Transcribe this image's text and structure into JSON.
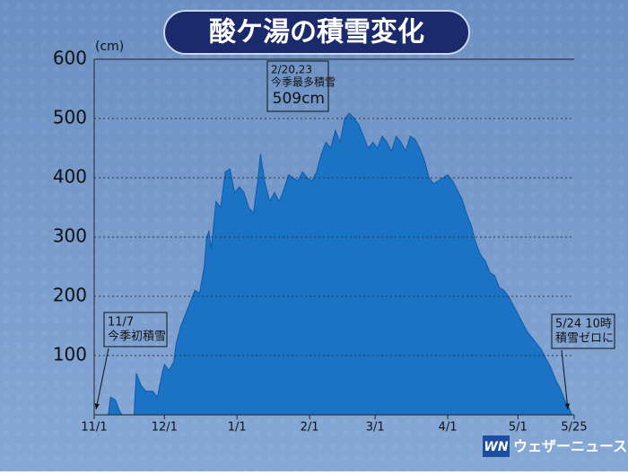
{
  "chart_data": {
    "type": "area",
    "title": "酸ケ湯の積雪変化",
    "y_unit": "(cm)",
    "x": [
      0,
      6,
      7,
      9,
      11,
      12,
      17,
      18,
      20,
      22,
      25,
      27,
      29,
      30,
      32,
      34,
      35,
      37,
      39,
      41,
      43,
      45,
      47,
      48,
      49,
      50,
      52,
      54,
      56,
      58,
      60,
      62,
      64,
      66,
      68,
      70,
      71,
      73,
      75,
      77,
      79,
      81,
      83,
      85,
      87,
      89,
      91,
      93,
      95,
      97,
      99,
      101,
      103,
      105,
      107,
      109,
      111,
      113,
      115,
      117,
      119,
      121,
      123,
      125,
      127,
      129,
      131,
      133,
      135,
      137,
      139,
      141,
      143,
      145,
      147,
      149,
      151,
      153,
      155,
      157,
      159,
      161,
      163,
      165,
      167,
      169,
      171,
      173,
      175,
      177,
      179,
      181,
      183,
      185,
      187,
      189,
      191,
      193,
      195,
      197,
      199,
      201,
      203,
      204,
      205
    ],
    "values": [
      0,
      0,
      30,
      25,
      5,
      0,
      0,
      70,
      50,
      40,
      40,
      30,
      70,
      85,
      75,
      90,
      120,
      150,
      170,
      190,
      210,
      205,
      250,
      300,
      310,
      280,
      360,
      350,
      410,
      415,
      375,
      385,
      375,
      350,
      340,
      400,
      440,
      390,
      360,
      375,
      360,
      380,
      405,
      400,
      395,
      410,
      400,
      395,
      410,
      440,
      460,
      450,
      480,
      460,
      500,
      509,
      500,
      490,
      470,
      450,
      460,
      450,
      470,
      460,
      445,
      470,
      460,
      445,
      470,
      465,
      450,
      430,
      400,
      390,
      395,
      400,
      405,
      395,
      380,
      365,
      340,
      320,
      290,
      270,
      260,
      240,
      235,
      215,
      210,
      200,
      185,
      170,
      155,
      140,
      130,
      120,
      110,
      95,
      80,
      60,
      45,
      25,
      10,
      0,
      0
    ],
    "color": "#1b73c6",
    "xlim": [
      0,
      205
    ],
    "xticks": [
      {
        "value": 0,
        "label": "11/1"
      },
      {
        "value": 30,
        "label": "12/1"
      },
      {
        "value": 61,
        "label": "1/1"
      },
      {
        "value": 92,
        "label": "2/1"
      },
      {
        "value": 120,
        "label": "3/1"
      },
      {
        "value": 151,
        "label": "4/1"
      },
      {
        "value": 181,
        "label": "5/1"
      },
      {
        "value": 205,
        "label": "5/25"
      }
    ],
    "ylim": [
      0,
      600
    ],
    "yticks": [
      100,
      200,
      300,
      400,
      500,
      600
    ],
    "grid": true,
    "annotations": [
      {
        "lines": [
          "2/20,23",
          "今季最多積雪",
          "509cm"
        ]
      },
      {
        "lines": [
          "11/7",
          "今季初積雪"
        ]
      },
      {
        "lines": [
          "5/24 10時",
          "積雪ゼロに"
        ]
      }
    ]
  },
  "logo": {
    "mark": "WN",
    "text": "ウェザーニュース"
  }
}
